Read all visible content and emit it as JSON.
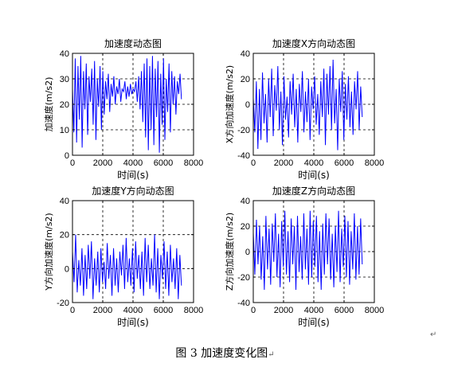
{
  "chart_data": [
    {
      "type": "line",
      "title": "加速度动态图",
      "xlabel": "时间(s)",
      "ylabel": "加速度(m/s2)",
      "xlim": [
        0,
        8000
      ],
      "ylim": [
        0,
        40
      ],
      "xticks": [
        0,
        2000,
        4000,
        6000,
        8000
      ],
      "yticks": [
        0,
        10,
        20,
        30,
        40
      ],
      "grid": true,
      "grid_style": "dashed",
      "line_color": "#0000ff",
      "x_end": 7200,
      "pattern": "dense oscillation between ~0 and ~40; narrower band ~20–33 around x=2800–3700",
      "y": [
        26,
        9,
        38,
        5,
        35,
        14,
        39,
        3,
        33,
        18,
        36,
        8,
        31,
        21,
        34,
        12,
        37,
        6,
        30,
        19,
        35,
        10,
        33,
        16,
        29,
        22,
        32,
        17,
        28,
        23,
        31,
        20,
        27,
        24,
        30,
        21,
        26,
        25,
        29,
        22,
        27,
        23,
        28,
        24,
        26,
        25,
        29,
        21,
        31,
        18,
        33,
        13,
        36,
        7,
        38,
        2,
        35,
        10,
        39,
        4,
        34,
        15,
        37,
        1,
        32,
        12,
        38,
        6,
        30,
        17,
        36,
        9,
        33,
        20,
        31,
        16,
        29,
        24,
        32,
        22
      ]
    },
    {
      "type": "line",
      "title": "加速度X方向动态图",
      "xlabel": "时间(s)",
      "ylabel": "X方向加速度(m/s2)",
      "xlim": [
        0,
        8000
      ],
      "ylim": [
        -40,
        40
      ],
      "xticks": [
        0,
        2000,
        4000,
        6000,
        8000
      ],
      "yticks": [
        -40,
        -20,
        0,
        20,
        40
      ],
      "grid": true,
      "grid_style": "dashed",
      "line_color": "#0000ff",
      "x_end": 7200,
      "y": [
        5,
        -22,
        18,
        -35,
        12,
        -28,
        25,
        -15,
        8,
        -30,
        20,
        -10,
        28,
        -25,
        15,
        -5,
        30,
        -20,
        10,
        -32,
        22,
        -12,
        6,
        -26,
        18,
        -8,
        24,
        -18,
        12,
        -30,
        16,
        -6,
        26,
        -22,
        10,
        -14,
        20,
        -28,
        14,
        -4,
        22,
        -16,
        8,
        -24,
        18,
        -10,
        28,
        -32,
        24,
        -8,
        30,
        -20,
        35,
        -15,
        12,
        -36,
        20,
        -6,
        26,
        -28,
        16,
        -12,
        22,
        -18,
        10,
        -24,
        18,
        -4,
        26,
        -20,
        14,
        -10
      ]
    },
    {
      "type": "line",
      "title": "加速度Y方向动态图",
      "xlabel": "时间(s)",
      "ylabel": "Y方向加速度(m/s2)",
      "xlim": [
        0,
        8000
      ],
      "ylim": [
        -20,
        40
      ],
      "xticks": [
        0,
        2000,
        4000,
        6000,
        8000
      ],
      "yticks": [
        -20,
        0,
        20,
        40
      ],
      "grid": true,
      "grid_style": "dashed",
      "line_color": "#0000ff",
      "x_end": 7200,
      "y": [
        10,
        -8,
        20,
        -14,
        5,
        -10,
        12,
        -16,
        8,
        -12,
        14,
        -6,
        16,
        -18,
        6,
        -10,
        10,
        -14,
        12,
        -8,
        4,
        -12,
        15,
        -6,
        8,
        -16,
        12,
        -10,
        6,
        -14,
        10,
        -4,
        14,
        -12,
        18,
        -8,
        6,
        -10,
        12,
        -14,
        16,
        -6,
        8,
        -12,
        10,
        -16,
        18,
        -8,
        14,
        -12,
        6,
        -10,
        20,
        -14,
        12,
        -18,
        8,
        -6,
        16,
        -12,
        10,
        -16,
        14,
        -8,
        6,
        -12,
        12,
        -18,
        8,
        -10
      ]
    },
    {
      "type": "line",
      "title": "加速度Z方向动态图",
      "xlabel": "时间(s)",
      "ylabel": "Z方向加速度(m/s2)",
      "xlim": [
        0,
        8000
      ],
      "ylim": [
        -40,
        40
      ],
      "xticks": [
        0,
        2000,
        4000,
        6000,
        8000
      ],
      "yticks": [
        -40,
        -20,
        0,
        20,
        40
      ],
      "grid": true,
      "grid_style": "dashed",
      "line_color": "#0000ff",
      "x_end": 7200,
      "y": [
        15,
        -18,
        25,
        -10,
        20,
        -22,
        12,
        -30,
        28,
        -14,
        18,
        -26,
        22,
        -8,
        30,
        -20,
        14,
        -28,
        24,
        -12,
        32,
        -18,
        16,
        -24,
        26,
        -10,
        20,
        -30,
        28,
        -16,
        12,
        -22,
        30,
        -14,
        18,
        -26,
        32,
        -20,
        24,
        -12,
        28,
        -24,
        16,
        -30,
        22,
        -18,
        30,
        -10,
        26,
        -22,
        14,
        -28,
        20,
        -16,
        32,
        -24,
        18,
        -12,
        28,
        -20,
        24,
        -26,
        16,
        -14,
        30,
        -22,
        20,
        -18,
        26,
        -10
      ]
    }
  ],
  "caption": {
    "text": "图 3  加速度变化图",
    "return_mark": "↵"
  },
  "corner_mark": "↵"
}
